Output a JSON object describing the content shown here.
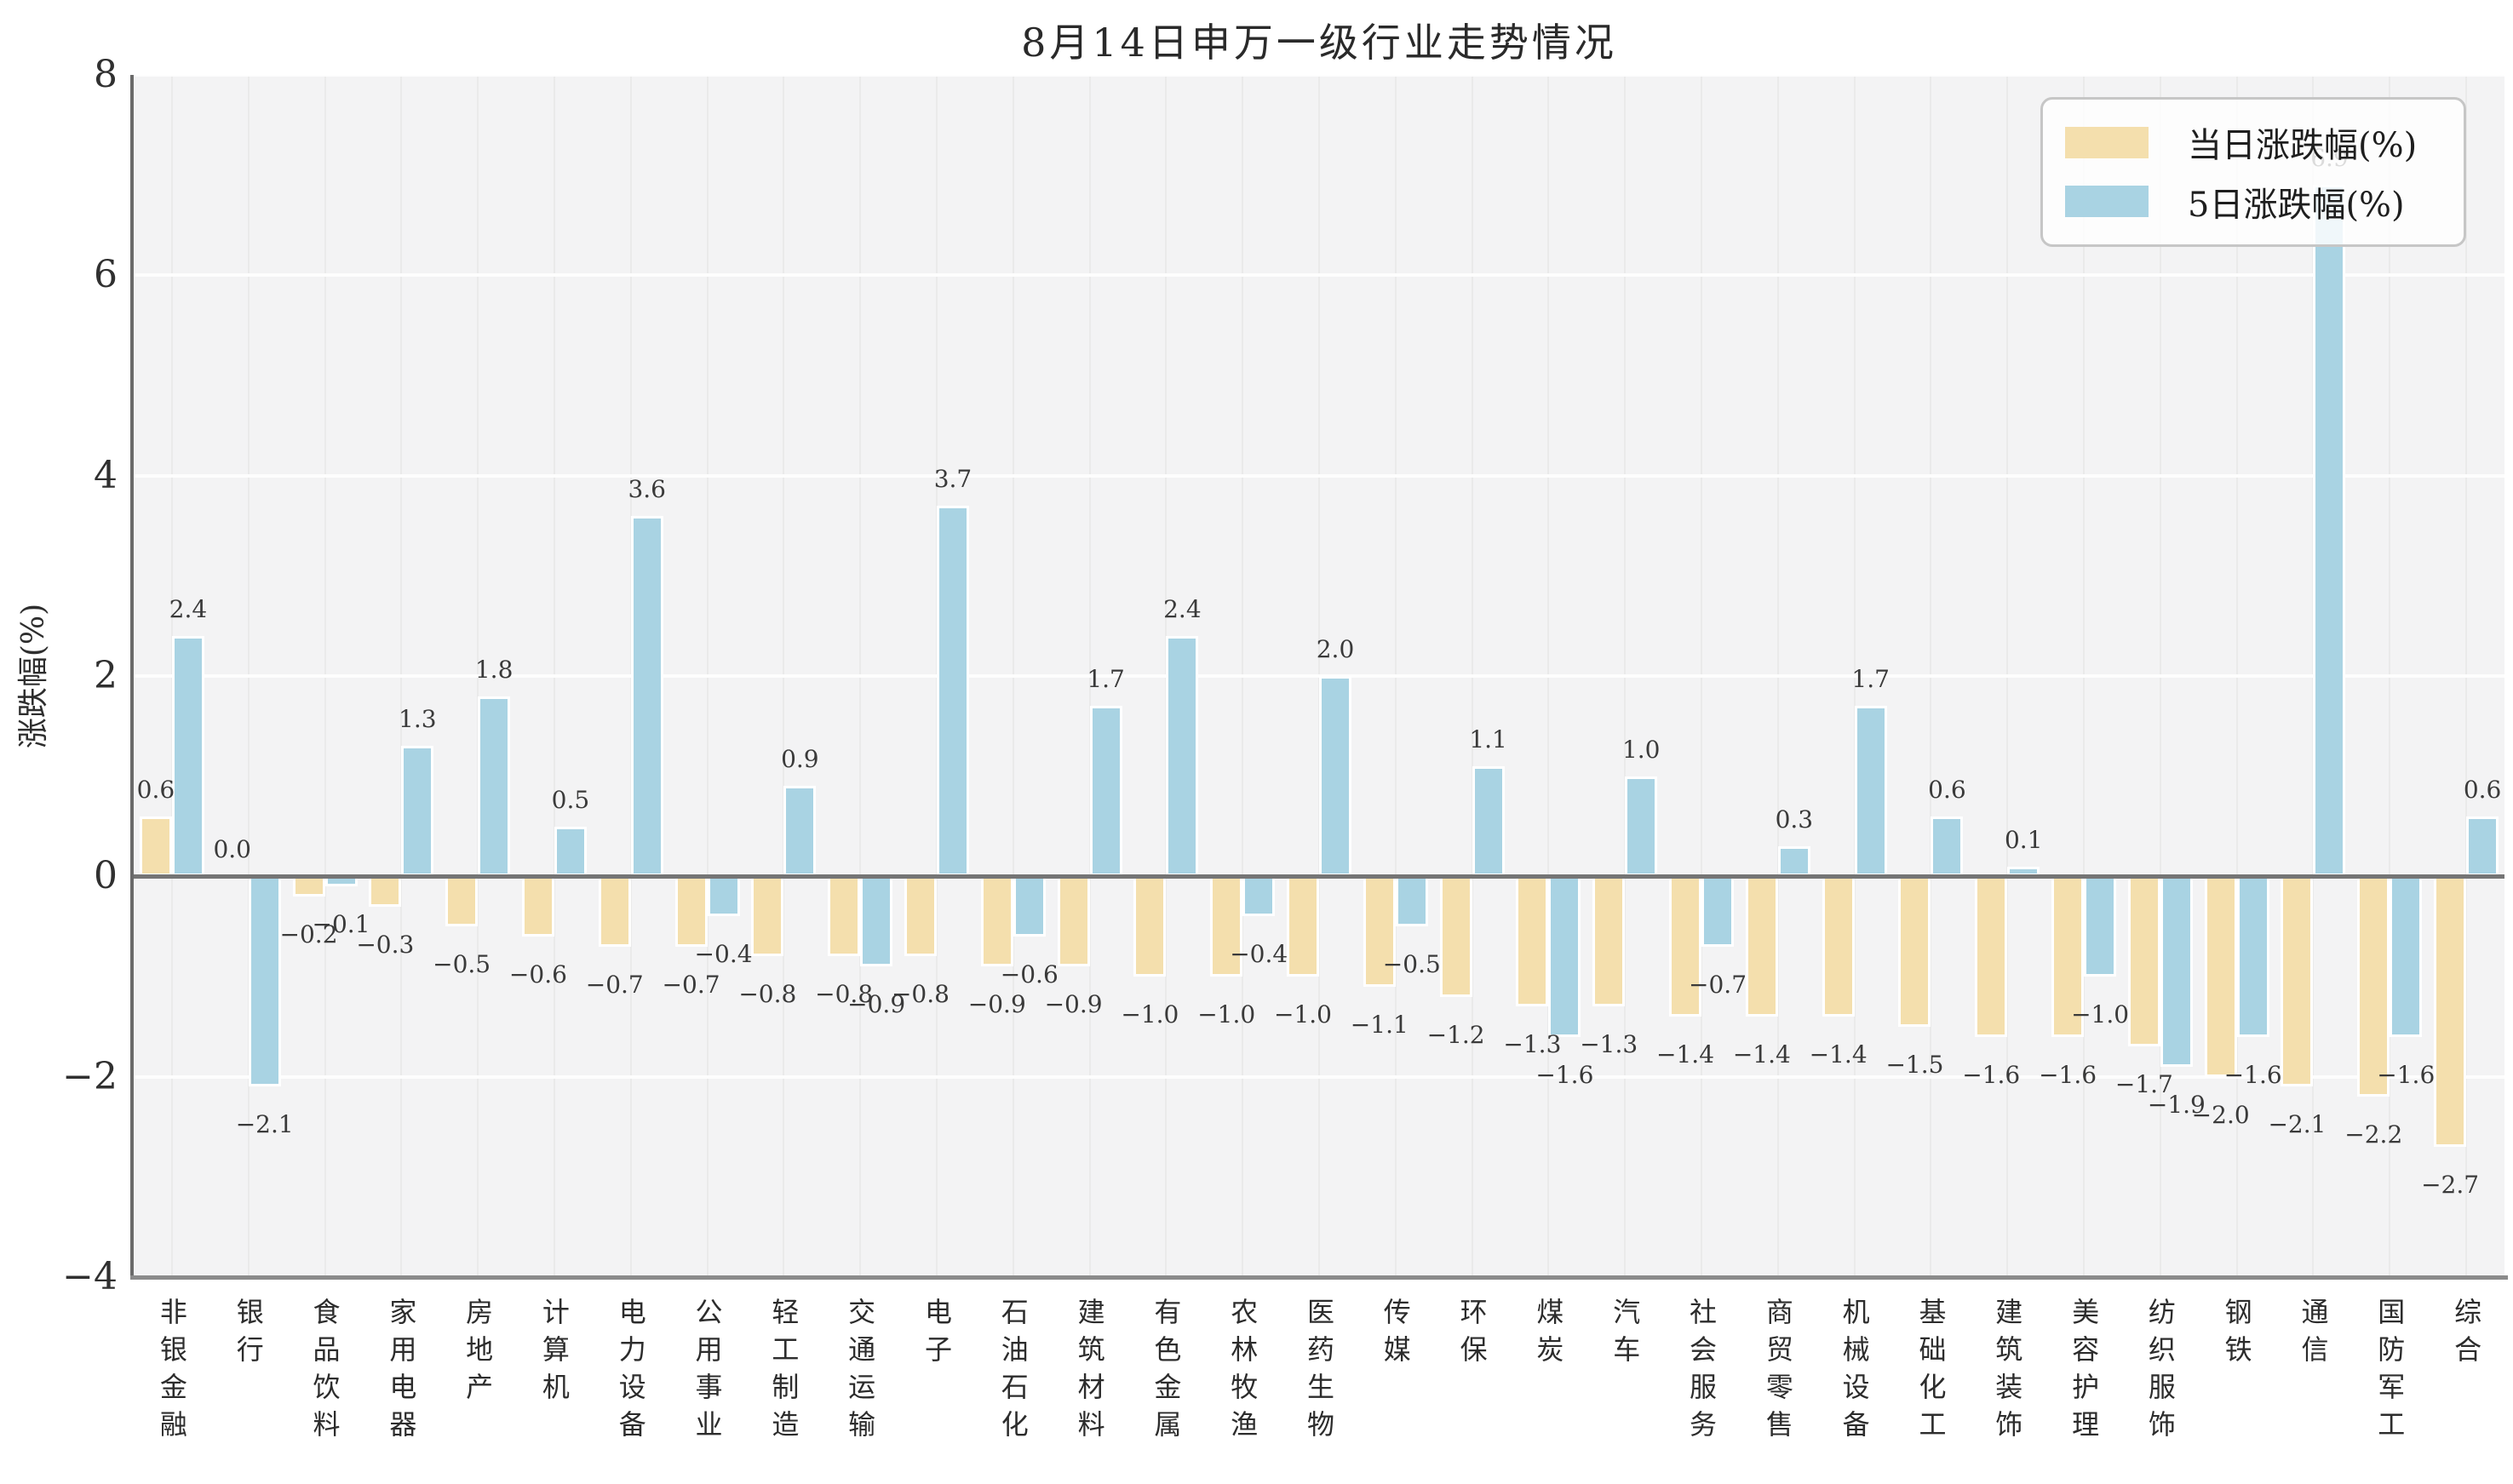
{
  "chart_data": {
    "type": "bar",
    "title": "8月14日申万一级行业走势情况",
    "xlabel": "",
    "ylabel": "涨跌幅(%)",
    "ylim": [
      -4,
      8
    ],
    "yticks": [
      -4,
      -2,
      0,
      2,
      4,
      6,
      8
    ],
    "grid": true,
    "legend_position": "top-right",
    "background_color": "#f3f3f4",
    "categories": [
      "非银金融",
      "银行",
      "食品饮料",
      "家用电器",
      "房地产",
      "计算机",
      "电力设备",
      "公用事业",
      "轻工制造",
      "交通运输",
      "电子",
      "石油石化",
      "建筑材料",
      "有色金属",
      "农林牧渔",
      "医药生物",
      "传媒",
      "环保",
      "煤炭",
      "汽车",
      "社会服务",
      "商贸零售",
      "机械设备",
      "基础化工",
      "建筑装饰",
      "美容护理",
      "纺织服饰",
      "钢铁",
      "通信",
      "国防军工",
      "综合"
    ],
    "series": [
      {
        "name": "当日涨跌幅(%)",
        "color": "#f4dfad",
        "values": [
          0.6,
          0.0,
          -0.2,
          -0.3,
          -0.5,
          -0.6,
          -0.7,
          -0.7,
          -0.8,
          -0.8,
          -0.8,
          -0.9,
          -0.9,
          -1.0,
          -1.0,
          -1.0,
          -1.1,
          -1.2,
          -1.3,
          -1.3,
          -1.4,
          -1.4,
          -1.4,
          -1.5,
          -1.6,
          -1.6,
          -1.7,
          -2.0,
          -2.1,
          -2.2,
          -2.7
        ]
      },
      {
        "name": "5日涨跌幅(%)",
        "color": "#a9d3e3",
        "values": [
          2.4,
          -2.1,
          -0.1,
          1.3,
          1.8,
          0.5,
          3.6,
          -0.4,
          0.9,
          -0.9,
          3.7,
          -0.6,
          1.7,
          2.4,
          -0.4,
          2.0,
          -0.5,
          1.1,
          -1.6,
          1.0,
          -0.7,
          0.3,
          1.7,
          0.6,
          0.1,
          -1.0,
          -1.9,
          -1.6,
          6.9,
          -1.6,
          0.6
        ]
      }
    ]
  }
}
